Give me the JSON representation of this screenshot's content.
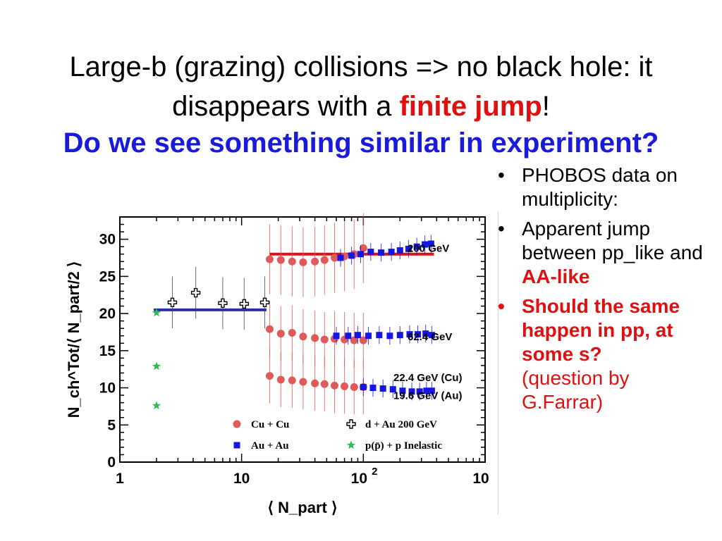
{
  "slide": {
    "title_line1": "Large-b (grazing) collisions => no black hole: it",
    "title_line2_pre": "disappears with a ",
    "title_line2_em": "finite jump",
    "title_line2_post": "!",
    "subtitle": "Do we see something similar in experiment?"
  },
  "bullets": [
    {
      "text": "PHOBOS data on multiplicity:"
    },
    {
      "text_pre": "Apparent jump between pp_like and ",
      "text_em": "AA-like"
    },
    {
      "text": "Should the same happen in pp, at some s?",
      "note": "(question by G.Farrar)"
    }
  ],
  "chart_data": {
    "type": "scatter",
    "x_scale": "log",
    "xlim": [
      1,
      1000
    ],
    "ylim": [
      0,
      33
    ],
    "xticks": [
      "1",
      "10",
      "10^2",
      "10^3"
    ],
    "yticks": [
      "0",
      "5",
      "10",
      "15",
      "20",
      "25",
      "30"
    ],
    "xlabel": "⟨ N_part ⟩",
    "ylabel": "N_ch^Tot/⟨ N_part/2 ⟩",
    "energy_labels": [
      "200 GeV",
      "62.4 GeV",
      "22.4 GeV (Cu)",
      "19.6 GeV (Au)"
    ],
    "legend_position": "bottom",
    "legend": [
      "Cu + Cu",
      "d + Au 200 GeV",
      "Au + Au",
      "p(p̄) + p  Inelastic"
    ],
    "colors": {
      "cucu": "#e05a5a",
      "auau": "#1515e6",
      "pp": "#2bbf52",
      "dau": "#000000",
      "line_red": "#e01010",
      "line_blue": "#2c2ca8"
    },
    "series": [
      {
        "name": "Cu + Cu",
        "marker": "circle",
        "color": "#e05a5a",
        "x": [
          17,
          21,
          26,
          32,
          40,
          48,
          58,
          70,
          84,
          100
        ],
        "y": [
          27.3,
          27.2,
          27.0,
          26.9,
          27.0,
          27.2,
          27.5,
          27.7,
          28.0,
          28.8
        ]
      },
      {
        "name": "Cu + Cu",
        "marker": "circle",
        "color": "#e05a5a",
        "x": [
          17,
          21,
          26,
          32,
          40,
          48,
          58,
          70,
          84,
          100
        ],
        "y": [
          17.9,
          17.3,
          17.4,
          16.9,
          16.7,
          16.5,
          16.6,
          16.5,
          16.4,
          16.4
        ]
      },
      {
        "name": "Cu + Cu",
        "marker": "circle",
        "color": "#e05a5a",
        "x": [
          17,
          21,
          26,
          32,
          40,
          48,
          58,
          70,
          84,
          100
        ],
        "y": [
          11.6,
          11.1,
          11.0,
          10.8,
          10.6,
          10.5,
          10.3,
          10.2,
          10.1,
          10.1
        ]
      },
      {
        "name": "Au + Au",
        "marker": "square",
        "color": "#1515e6",
        "x": [
          65,
          80,
          95,
          115,
          140,
          170,
          200,
          235,
          275,
          320,
          360
        ],
        "y": [
          27.5,
          27.8,
          28.0,
          28.3,
          28.2,
          28.3,
          28.5,
          28.7,
          29.0,
          29.3,
          29.4
        ]
      },
      {
        "name": "Au + Au",
        "marker": "square",
        "color": "#1515e6",
        "x": [
          60,
          75,
          90,
          110,
          135,
          165,
          200,
          240,
          280,
          325,
          365
        ],
        "y": [
          17.0,
          17.0,
          17.1,
          17.0,
          17.1,
          17.0,
          17.1,
          17.2,
          17.2,
          17.3,
          17.1
        ]
      },
      {
        "name": "Au + Au",
        "marker": "square",
        "color": "#1515e6",
        "x": [
          100,
          120,
          145,
          175,
          210,
          250,
          290,
          330,
          365
        ],
        "y": [
          10.1,
          10.0,
          9.9,
          9.8,
          9.6,
          9.5,
          9.5,
          9.6,
          9.6
        ]
      },
      {
        "name": "d + Au 200 GeV",
        "marker": "open-cross",
        "color": "#000000",
        "x": [
          2.7,
          4.2,
          7.0,
          10.5,
          15.5
        ],
        "y": [
          21.5,
          22.8,
          21.4,
          21.3,
          21.5
        ]
      },
      {
        "name": "p(p̄) + p  Inelastic",
        "marker": "star",
        "color": "#2bbf52",
        "x": [
          2,
          2,
          2
        ],
        "y": [
          20.1,
          12.9,
          7.6
        ]
      }
    ],
    "level_lines": [
      {
        "y": 28.0,
        "x_from": 17,
        "x_to": 380,
        "color": "#e01010"
      },
      {
        "y": 20.5,
        "x_from": 1.9,
        "x_to": 16,
        "color": "#2c2ca8"
      }
    ]
  }
}
